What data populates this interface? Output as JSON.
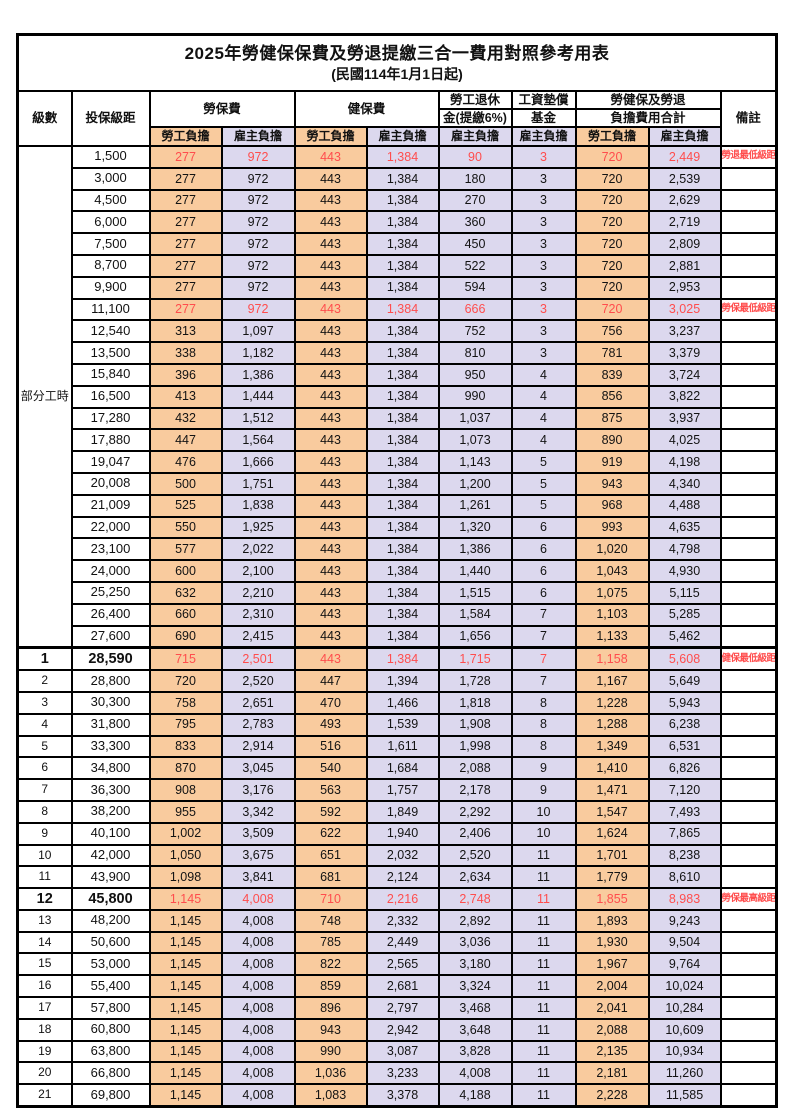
{
  "title": "2025年勞健保保費及勞退提繳三合一費用對照參考用表",
  "subtitle": "(民國114年1月1日起)",
  "colors": {
    "employee_bg": "#F9CB9E",
    "employer_bg": "#DCD8EE",
    "highlight_text": "#FF4D4D",
    "border": "#000000"
  },
  "header": {
    "level": "級數",
    "bracket": "投保級距",
    "labor_fee": "勞保費",
    "health_fee": "健保費",
    "pension_line1": "勞工退休",
    "pension_line2": "金(提繳6%)",
    "wage_fund_line1": "工資墊償",
    "wage_fund_line2": "基金",
    "total_line1": "勞健保及勞退",
    "total_line2": "負擔費用合計",
    "remark": "備註",
    "employee": "勞工負擔",
    "employer": "雇主負擔"
  },
  "part_time_label": "部分工時",
  "part_time_rowspan": 23,
  "rows": [
    {
      "level": null,
      "bracket": "1,500",
      "values": [
        "277",
        "972",
        "443",
        "1,384",
        "90",
        "3",
        "720",
        "2,449"
      ],
      "red": true,
      "remark": "勞退最低級距"
    },
    {
      "level": null,
      "bracket": "3,000",
      "values": [
        "277",
        "972",
        "443",
        "1,384",
        "180",
        "3",
        "720",
        "2,539"
      ]
    },
    {
      "level": null,
      "bracket": "4,500",
      "values": [
        "277",
        "972",
        "443",
        "1,384",
        "270",
        "3",
        "720",
        "2,629"
      ]
    },
    {
      "level": null,
      "bracket": "6,000",
      "values": [
        "277",
        "972",
        "443",
        "1,384",
        "360",
        "3",
        "720",
        "2,719"
      ]
    },
    {
      "level": null,
      "bracket": "7,500",
      "values": [
        "277",
        "972",
        "443",
        "1,384",
        "450",
        "3",
        "720",
        "2,809"
      ]
    },
    {
      "level": null,
      "bracket": "8,700",
      "values": [
        "277",
        "972",
        "443",
        "1,384",
        "522",
        "3",
        "720",
        "2,881"
      ]
    },
    {
      "level": null,
      "bracket": "9,900",
      "values": [
        "277",
        "972",
        "443",
        "1,384",
        "594",
        "3",
        "720",
        "2,953"
      ]
    },
    {
      "level": null,
      "bracket": "11,100",
      "values": [
        "277",
        "972",
        "443",
        "1,384",
        "666",
        "3",
        "720",
        "3,025"
      ],
      "red": true,
      "remark": "勞保最低級距"
    },
    {
      "level": null,
      "bracket": "12,540",
      "values": [
        "313",
        "1,097",
        "443",
        "1,384",
        "752",
        "3",
        "756",
        "3,237"
      ]
    },
    {
      "level": null,
      "bracket": "13,500",
      "values": [
        "338",
        "1,182",
        "443",
        "1,384",
        "810",
        "3",
        "781",
        "3,379"
      ]
    },
    {
      "level": null,
      "bracket": "15,840",
      "values": [
        "396",
        "1,386",
        "443",
        "1,384",
        "950",
        "4",
        "839",
        "3,724"
      ]
    },
    {
      "level": null,
      "bracket": "16,500",
      "values": [
        "413",
        "1,444",
        "443",
        "1,384",
        "990",
        "4",
        "856",
        "3,822"
      ]
    },
    {
      "level": null,
      "bracket": "17,280",
      "values": [
        "432",
        "1,512",
        "443",
        "1,384",
        "1,037",
        "4",
        "875",
        "3,937"
      ]
    },
    {
      "level": null,
      "bracket": "17,880",
      "values": [
        "447",
        "1,564",
        "443",
        "1,384",
        "1,073",
        "4",
        "890",
        "4,025"
      ]
    },
    {
      "level": null,
      "bracket": "19,047",
      "values": [
        "476",
        "1,666",
        "443",
        "1,384",
        "1,143",
        "5",
        "919",
        "4,198"
      ]
    },
    {
      "level": null,
      "bracket": "20,008",
      "values": [
        "500",
        "1,751",
        "443",
        "1,384",
        "1,200",
        "5",
        "943",
        "4,340"
      ]
    },
    {
      "level": null,
      "bracket": "21,009",
      "values": [
        "525",
        "1,838",
        "443",
        "1,384",
        "1,261",
        "5",
        "968",
        "4,488"
      ]
    },
    {
      "level": null,
      "bracket": "22,000",
      "values": [
        "550",
        "1,925",
        "443",
        "1,384",
        "1,320",
        "6",
        "993",
        "4,635"
      ]
    },
    {
      "level": null,
      "bracket": "23,100",
      "values": [
        "577",
        "2,022",
        "443",
        "1,384",
        "1,386",
        "6",
        "1,020",
        "4,798"
      ]
    },
    {
      "level": null,
      "bracket": "24,000",
      "values": [
        "600",
        "2,100",
        "443",
        "1,384",
        "1,440",
        "6",
        "1,043",
        "4,930"
      ]
    },
    {
      "level": null,
      "bracket": "25,250",
      "values": [
        "632",
        "2,210",
        "443",
        "1,384",
        "1,515",
        "6",
        "1,075",
        "5,115"
      ]
    },
    {
      "level": null,
      "bracket": "26,400",
      "values": [
        "660",
        "2,310",
        "443",
        "1,384",
        "1,584",
        "7",
        "1,103",
        "5,285"
      ]
    },
    {
      "level": null,
      "bracket": "27,600",
      "values": [
        "690",
        "2,415",
        "443",
        "1,384",
        "1,656",
        "7",
        "1,133",
        "5,462"
      ]
    },
    {
      "level": "1",
      "bracket": "28,590",
      "values": [
        "715",
        "2,501",
        "443",
        "1,384",
        "1,715",
        "7",
        "1,158",
        "5,608"
      ],
      "red": true,
      "bold": true,
      "section_start": true,
      "remark": "健保最低級距"
    },
    {
      "level": "2",
      "bracket": "28,800",
      "values": [
        "720",
        "2,520",
        "447",
        "1,394",
        "1,728",
        "7",
        "1,167",
        "5,649"
      ]
    },
    {
      "level": "3",
      "bracket": "30,300",
      "values": [
        "758",
        "2,651",
        "470",
        "1,466",
        "1,818",
        "8",
        "1,228",
        "5,943"
      ]
    },
    {
      "level": "4",
      "bracket": "31,800",
      "values": [
        "795",
        "2,783",
        "493",
        "1,539",
        "1,908",
        "8",
        "1,288",
        "6,238"
      ]
    },
    {
      "level": "5",
      "bracket": "33,300",
      "values": [
        "833",
        "2,914",
        "516",
        "1,611",
        "1,998",
        "8",
        "1,349",
        "6,531"
      ]
    },
    {
      "level": "6",
      "bracket": "34,800",
      "values": [
        "870",
        "3,045",
        "540",
        "1,684",
        "2,088",
        "9",
        "1,410",
        "6,826"
      ]
    },
    {
      "level": "7",
      "bracket": "36,300",
      "values": [
        "908",
        "3,176",
        "563",
        "1,757",
        "2,178",
        "9",
        "1,471",
        "7,120"
      ]
    },
    {
      "level": "8",
      "bracket": "38,200",
      "values": [
        "955",
        "3,342",
        "592",
        "1,849",
        "2,292",
        "10",
        "1,547",
        "7,493"
      ]
    },
    {
      "level": "9",
      "bracket": "40,100",
      "values": [
        "1,002",
        "3,509",
        "622",
        "1,940",
        "2,406",
        "10",
        "1,624",
        "7,865"
      ]
    },
    {
      "level": "10",
      "bracket": "42,000",
      "values": [
        "1,050",
        "3,675",
        "651",
        "2,032",
        "2,520",
        "11",
        "1,701",
        "8,238"
      ]
    },
    {
      "level": "11",
      "bracket": "43,900",
      "values": [
        "1,098",
        "3,841",
        "681",
        "2,124",
        "2,634",
        "11",
        "1,779",
        "8,610"
      ]
    },
    {
      "level": "12",
      "bracket": "45,800",
      "values": [
        "1,145",
        "4,008",
        "710",
        "2,216",
        "2,748",
        "11",
        "1,855",
        "8,983"
      ],
      "red": true,
      "bold": true,
      "remark": "勞保最高級距"
    },
    {
      "level": "13",
      "bracket": "48,200",
      "values": [
        "1,145",
        "4,008",
        "748",
        "2,332",
        "2,892",
        "11",
        "1,893",
        "9,243"
      ]
    },
    {
      "level": "14",
      "bracket": "50,600",
      "values": [
        "1,145",
        "4,008",
        "785",
        "2,449",
        "3,036",
        "11",
        "1,930",
        "9,504"
      ]
    },
    {
      "level": "15",
      "bracket": "53,000",
      "values": [
        "1,145",
        "4,008",
        "822",
        "2,565",
        "3,180",
        "11",
        "1,967",
        "9,764"
      ]
    },
    {
      "level": "16",
      "bracket": "55,400",
      "values": [
        "1,145",
        "4,008",
        "859",
        "2,681",
        "3,324",
        "11",
        "2,004",
        "10,024"
      ]
    },
    {
      "level": "17",
      "bracket": "57,800",
      "values": [
        "1,145",
        "4,008",
        "896",
        "2,797",
        "3,468",
        "11",
        "2,041",
        "10,284"
      ]
    },
    {
      "level": "18",
      "bracket": "60,800",
      "values": [
        "1,145",
        "4,008",
        "943",
        "2,942",
        "3,648",
        "11",
        "2,088",
        "10,609"
      ]
    },
    {
      "level": "19",
      "bracket": "63,800",
      "values": [
        "1,145",
        "4,008",
        "990",
        "3,087",
        "3,828",
        "11",
        "2,135",
        "10,934"
      ]
    },
    {
      "level": "20",
      "bracket": "66,800",
      "values": [
        "1,145",
        "4,008",
        "1,036",
        "3,233",
        "4,008",
        "11",
        "2,181",
        "11,260"
      ]
    },
    {
      "level": "21",
      "bracket": "69,800",
      "values": [
        "1,145",
        "4,008",
        "1,083",
        "3,378",
        "4,188",
        "11",
        "2,228",
        "11,585"
      ]
    }
  ]
}
